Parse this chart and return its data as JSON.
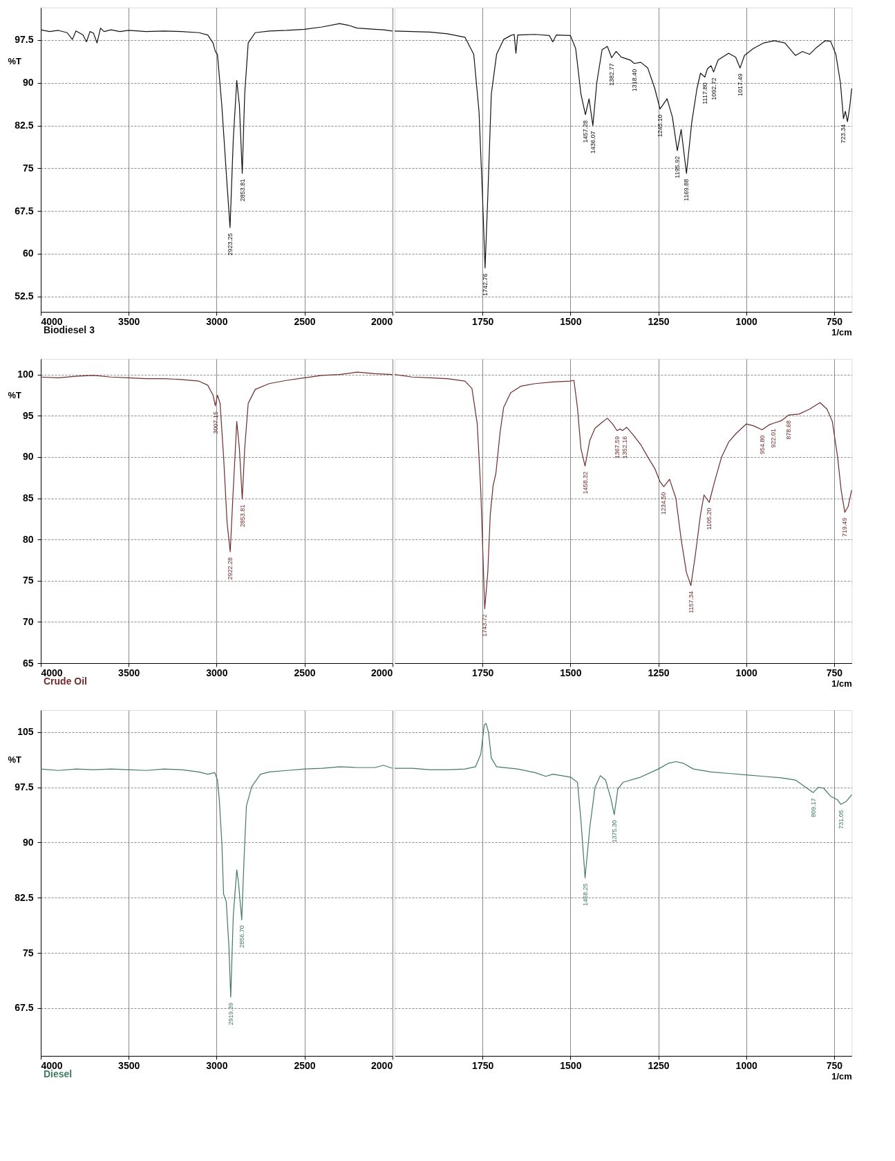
{
  "chart_data": [
    {
      "type": "line",
      "ylabel": "%T",
      "xlim": [
        4000,
        2000
      ],
      "ylim": [
        49.8,
        103.2
      ],
      "xticks": [
        4000,
        3500,
        3000,
        2500,
        2000
      ],
      "yticks": [
        52.5,
        60,
        67.5,
        75,
        82.5,
        90,
        97.5
      ],
      "grid": true,
      "series": [
        {
          "name": "Biodiesel 3",
          "color": "#111111",
          "x": [
            4000,
            3950,
            3900,
            3850,
            3820,
            3800,
            3760,
            3740,
            3720,
            3700,
            3680,
            3660,
            3640,
            3600,
            3550,
            3500,
            3400,
            3300,
            3200,
            3100,
            3050,
            3020,
            3007,
            2995,
            2970,
            2940,
            2923.25,
            2905,
            2885,
            2870,
            2853.81,
            2840,
            2820,
            2780,
            2700,
            2600,
            2500,
            2400,
            2300,
            2250,
            2200,
            2100,
            2050,
            2000
          ],
          "values": [
            99.3,
            99.0,
            99.2,
            98.8,
            97.6,
            99.1,
            98.4,
            97.2,
            99.0,
            98.7,
            97.0,
            99.6,
            99.0,
            99.3,
            99.0,
            99.2,
            99.0,
            99.1,
            99.0,
            98.8,
            98.4,
            97.0,
            95.5,
            95.0,
            86,
            72,
            64.6,
            80,
            90.4,
            86,
            74.1,
            88,
            97,
            98.8,
            99.1,
            99.2,
            99.4,
            99.8,
            100.4,
            100.1,
            99.6,
            99.4,
            99.3,
            99.1
          ]
        }
      ],
      "annotations": [
        {
          "text": "2923.25",
          "x": 2923.25,
          "y": 64.6
        },
        {
          "text": "2853.81",
          "x": 2853.81,
          "y": 74.1
        }
      ]
    },
    {
      "type": "line",
      "xlabel": "1/cm",
      "xlim": [
        2000,
        700
      ],
      "ylim": [
        49.8,
        103.2
      ],
      "xticks": [
        1750,
        1500,
        1250,
        1000,
        750
      ],
      "yticks": [
        52.5,
        60,
        67.5,
        75,
        82.5,
        90,
        97.5
      ],
      "grid": true,
      "tick_labels": "x",
      "series": [
        {
          "color": "#111111",
          "x": [
            2000,
            1950,
            1900,
            1850,
            1800,
            1775,
            1760,
            1750,
            1742.76,
            1735,
            1725,
            1710,
            1690,
            1670,
            1660,
            1655,
            1650,
            1600,
            1560,
            1550,
            1540,
            1500,
            1485,
            1470,
            1457.28,
            1447,
            1436.07,
            1425,
            1410,
            1395,
            1385,
            1382.77,
            1370,
            1355,
            1330,
            1318.4,
            1300,
            1280,
            1260,
            1245.1,
            1225,
            1210,
            1195.92,
            1185,
            1169.88,
            1155,
            1140,
            1130,
            1117.8,
            1110,
            1100,
            1092.72,
            1080,
            1050,
            1030,
            1017.49,
            1005,
            980,
            950,
            920,
            890,
            860,
            840,
            820,
            800,
            775,
            760,
            745,
            732,
            723.34,
            718,
            712,
            705,
            700
          ],
          "values": [
            99.1,
            99.0,
            98.9,
            98.6,
            98.0,
            95,
            85,
            70,
            57.5,
            70,
            88,
            95,
            97.6,
            98.3,
            98.5,
            95.2,
            98.4,
            98.5,
            98.3,
            97.2,
            98.4,
            98.3,
            96,
            88,
            84.4,
            87.2,
            82.5,
            90,
            95.8,
            96.4,
            94.8,
            94.4,
            95.5,
            94.5,
            94.0,
            93.4,
            93.6,
            92.6,
            89,
            85.4,
            87.2,
            84,
            78.1,
            81.8,
            74.1,
            83,
            89,
            91.7,
            91.0,
            92.5,
            93,
            91.9,
            94.0,
            95.2,
            94.5,
            92.6,
            94.8,
            96.0,
            97.0,
            97.4,
            97.0,
            94.8,
            95.5,
            95.0,
            96.2,
            97.4,
            97.3,
            95,
            90,
            83.7,
            85,
            83.2,
            86,
            89
          ]
        }
      ],
      "annotations": [
        {
          "text": "1742.76",
          "x": 1742.76,
          "y": 57.5
        },
        {
          "text": "1457.28",
          "x": 1457.28,
          "y": 84.4
        },
        {
          "text": "1436.07",
          "x": 1436.07,
          "y": 82.5
        },
        {
          "text": "1382.77",
          "x": 1382.77,
          "y": 94.4
        },
        {
          "text": "1318.40",
          "x": 1318.4,
          "y": 93.4
        },
        {
          "text": "1245.10",
          "x": 1245.1,
          "y": 85.4
        },
        {
          "text": "1195.92",
          "x": 1195.92,
          "y": 78.1
        },
        {
          "text": "1169.88",
          "x": 1169.88,
          "y": 74.1
        },
        {
          "text": "1117.80",
          "x": 1117.8,
          "y": 91.0
        },
        {
          "text": "1092.72",
          "x": 1092.72,
          "y": 91.9
        },
        {
          "text": "1017.49",
          "x": 1017.49,
          "y": 92.6
        },
        {
          "text": "723.34",
          "x": 723.34,
          "y": 83.7
        }
      ]
    },
    {
      "type": "line",
      "ylabel": "%T",
      "xlim": [
        4000,
        2000
      ],
      "ylim": [
        65,
        101.9
      ],
      "xticks": [
        4000,
        3500,
        3000,
        2500,
        2000
      ],
      "yticks": [
        65,
        70,
        75,
        80,
        85,
        90,
        95,
        100
      ],
      "grid": true,
      "series": [
        {
          "name": "Crude Oil",
          "color": "#6e2c2c",
          "x": [
            4000,
            3900,
            3800,
            3700,
            3600,
            3500,
            3400,
            3300,
            3200,
            3100,
            3050,
            3020,
            3007.15,
            2995,
            2980,
            2960,
            2940,
            2922.28,
            2905,
            2885,
            2870,
            2853.81,
            2840,
            2820,
            2780,
            2700,
            2600,
            2500,
            2400,
            2300,
            2200,
            2100,
            2000
          ],
          "values": [
            99.7,
            99.6,
            99.8,
            99.9,
            99.7,
            99.6,
            99.5,
            99.5,
            99.4,
            99.2,
            98.7,
            97.5,
            96.2,
            97.5,
            96.5,
            90,
            82,
            78.5,
            86,
            94.3,
            91,
            84.9,
            91,
            96.5,
            98.2,
            98.9,
            99.3,
            99.6,
            99.9,
            100.0,
            100.3,
            100.1,
            100.0
          ]
        }
      ],
      "annotations": [
        {
          "text": "3007.15",
          "x": 3007.15,
          "y": 96.2
        },
        {
          "text": "2922.28",
          "x": 2922.28,
          "y": 78.5
        },
        {
          "text": "2853.81",
          "x": 2853.81,
          "y": 84.9
        }
      ]
    },
    {
      "type": "line",
      "xlabel": "1/cm",
      "xlim": [
        2000,
        700
      ],
      "ylim": [
        65,
        101.9
      ],
      "xticks": [
        1750,
        1500,
        1250,
        1000,
        750
      ],
      "yticks": [
        65,
        70,
        75,
        80,
        85,
        90,
        95,
        100
      ],
      "grid": true,
      "tick_labels": "x",
      "series": [
        {
          "color": "#6e2c2c",
          "x": [
            2000,
            1950,
            1900,
            1850,
            1800,
            1780,
            1765,
            1755,
            1743.72,
            1735,
            1728,
            1720,
            1712,
            1700,
            1690,
            1670,
            1640,
            1600,
            1550,
            1500,
            1490,
            1480,
            1470,
            1458.32,
            1445,
            1430,
            1410,
            1395,
            1380,
            1367.59,
            1358,
            1352.16,
            1340,
            1320,
            1300,
            1280,
            1260,
            1245,
            1234.5,
            1218,
            1200,
            1185,
            1170,
            1157.34,
            1145,
            1130,
            1120,
            1105.2,
            1090,
            1070,
            1050,
            1030,
            1000,
            980,
            954.8,
            935,
            922.01,
            900,
            878.68,
            850,
            820,
            790,
            770,
            755,
            740,
            730,
            719.49,
            710,
            700
          ],
          "values": [
            100.0,
            99.7,
            99.6,
            99.5,
            99.2,
            98.3,
            94,
            86,
            71.6,
            76,
            83,
            86.5,
            88,
            93,
            96,
            97.8,
            98.6,
            98.9,
            99.1,
            99.2,
            99.3,
            96,
            91,
            88.9,
            92,
            93.5,
            94.2,
            94.7,
            94.0,
            93.2,
            93.4,
            93.2,
            93.6,
            92.6,
            91.5,
            90,
            88.6,
            87,
            86.4,
            87.3,
            85,
            80,
            76,
            74.4,
            78,
            83,
            85.4,
            84.5,
            87,
            90,
            91.8,
            92.8,
            94.0,
            93.8,
            93.3,
            93.9,
            94.1,
            94.4,
            95.1,
            95.2,
            95.8,
            96.6,
            95.8,
            94.3,
            90,
            86,
            83.3,
            84,
            86
          ]
        }
      ],
      "annotations": [
        {
          "text": "1743.72",
          "x": 1743.72,
          "y": 71.6
        },
        {
          "text": "1458.32",
          "x": 1458.32,
          "y": 88.9
        },
        {
          "text": "1367.59",
          "x": 1367.59,
          "y": 93.2
        },
        {
          "text": "1352.16",
          "x": 1352.16,
          "y": 93.2
        },
        {
          "text": "1234.50",
          "x": 1234.5,
          "y": 86.4
        },
        {
          "text": "1157.34",
          "x": 1157.34,
          "y": 74.4
        },
        {
          "text": "1105.20",
          "x": 1105.2,
          "y": 84.5
        },
        {
          "text": "954.80",
          "x": 954.8,
          "y": 93.3
        },
        {
          "text": "922.01",
          "x": 922.01,
          "y": 94.1
        },
        {
          "text": "878.68",
          "x": 878.68,
          "y": 95.1
        },
        {
          "text": "719.49",
          "x": 719.49,
          "y": 83.3
        }
      ]
    },
    {
      "type": "line",
      "ylabel": "%T",
      "xlim": [
        4000,
        2000
      ],
      "ylim": [
        61,
        108
      ],
      "xticks": [
        4000,
        3500,
        3000,
        2500,
        2000
      ],
      "yticks": [
        67.5,
        75,
        82.5,
        90,
        97.5,
        105
      ],
      "grid": true,
      "series": [
        {
          "name": "Diesel",
          "color": "#3f7a60",
          "x": [
            4000,
            3900,
            3800,
            3700,
            3600,
            3500,
            3400,
            3300,
            3200,
            3100,
            3050,
            3010,
            2995,
            2985,
            2970,
            2960,
            2945,
            2930,
            2919.39,
            2905,
            2885,
            2875,
            2856.7,
            2845,
            2830,
            2800,
            2750,
            2700,
            2600,
            2500,
            2400,
            2300,
            2200,
            2100,
            2050,
            2000
          ],
          "values": [
            100.0,
            99.8,
            100.0,
            99.9,
            100.0,
            99.9,
            99.8,
            100.0,
            99.9,
            99.6,
            99.3,
            99.5,
            98.5,
            96,
            90,
            83,
            82,
            76,
            69.0,
            80,
            86.3,
            84.5,
            79.5,
            87,
            95,
            97.6,
            99.3,
            99.6,
            99.8,
            100.0,
            100.1,
            100.3,
            100.2,
            100.2,
            100.5,
            100.1
          ]
        }
      ],
      "annotations": [
        {
          "text": "2919.39",
          "x": 2919.39,
          "y": 69.0
        },
        {
          "text": "2856.70",
          "x": 2856.7,
          "y": 79.5
        }
      ]
    },
    {
      "type": "line",
      "xlabel": "1/cm",
      "xlim": [
        2000,
        700
      ],
      "ylim": [
        61,
        108
      ],
      "xticks": [
        1750,
        1500,
        1250,
        1000,
        750
      ],
      "yticks": [
        67.5,
        75,
        82.5,
        90,
        97.5,
        105
      ],
      "grid": true,
      "tick_labels": "x",
      "series": [
        {
          "color": "#3f7a60",
          "x": [
            2000,
            1950,
            1900,
            1850,
            1800,
            1770,
            1755,
            1745,
            1740,
            1733,
            1725,
            1710,
            1650,
            1600,
            1570,
            1550,
            1500,
            1480,
            1470,
            1458.25,
            1445,
            1430,
            1415,
            1400,
            1385,
            1375.3,
            1365,
            1350,
            1300,
            1250,
            1220,
            1200,
            1180,
            1150,
            1100,
            1050,
            1000,
            950,
            900,
            860,
            830,
            809.17,
            795,
            780,
            760,
            740,
            731.05,
            715,
            700
          ],
          "values": [
            100.1,
            100.1,
            99.9,
            99.9,
            100.0,
            100.3,
            102,
            106.0,
            106.2,
            105,
            101.5,
            100.3,
            100.0,
            99.5,
            99.0,
            99.3,
            98.9,
            98.2,
            93,
            85.2,
            92,
            97.5,
            99.1,
            98.5,
            96,
            93.8,
            97.3,
            98.2,
            98.9,
            100.0,
            100.8,
            101.0,
            100.8,
            100.0,
            99.6,
            99.4,
            99.2,
            99.0,
            98.8,
            98.5,
            97.5,
            96.8,
            97.5,
            97.4,
            96.3,
            95.8,
            95.2,
            95.6,
            96.5
          ]
        }
      ],
      "annotations": [
        {
          "text": "1458.25",
          "x": 1458.25,
          "y": 85.2
        },
        {
          "text": "1375.30",
          "x": 1375.3,
          "y": 93.8
        },
        {
          "text": "809.17",
          "x": 809.17,
          "y": 96.8
        },
        {
          "text": "731.05",
          "x": 731.05,
          "y": 95.2
        }
      ]
    }
  ]
}
